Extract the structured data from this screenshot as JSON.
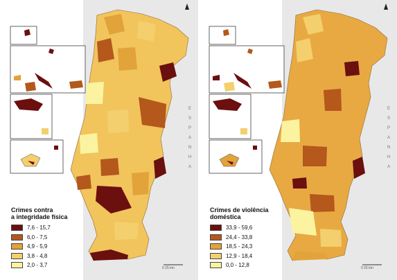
{
  "left_map": {
    "legend_title": "Crimes contra\na integridade física",
    "classes": [
      {
        "label": "7,6 - 15,7",
        "color": "#6b0f0f"
      },
      {
        "label": "6,0 - 7,5",
        "color": "#b4581c"
      },
      {
        "label": "4,9 - 5,9",
        "color": "#e1a33a"
      },
      {
        "label": "3,8 - 4,8",
        "color": "#f4cf6d"
      },
      {
        "label": "2,0 - 3,7",
        "color": "#fbf3a0"
      }
    ],
    "country_label": "E S P A N H A",
    "scale_label": "0    25 km"
  },
  "right_map": {
    "legend_title": "Crimes de violência\ndoméstica",
    "classes": [
      {
        "label": "33,9 - 59,6",
        "color": "#6b0f0f"
      },
      {
        "label": "24,4 - 33,8",
        "color": "#b4581c"
      },
      {
        "label": "18,5 - 24,3",
        "color": "#e1a33a"
      },
      {
        "label": "12,9 - 18,4",
        "color": "#f4cf6d"
      },
      {
        "label": "0,0 - 12,8",
        "color": "#fbf3a0"
      }
    ],
    "country_label": "E S P A N H A",
    "scale_label": "0    25 km"
  },
  "colors": {
    "sea": "#ffffff",
    "spain": "#e6e6e6",
    "border": "#8a6a3a"
  }
}
